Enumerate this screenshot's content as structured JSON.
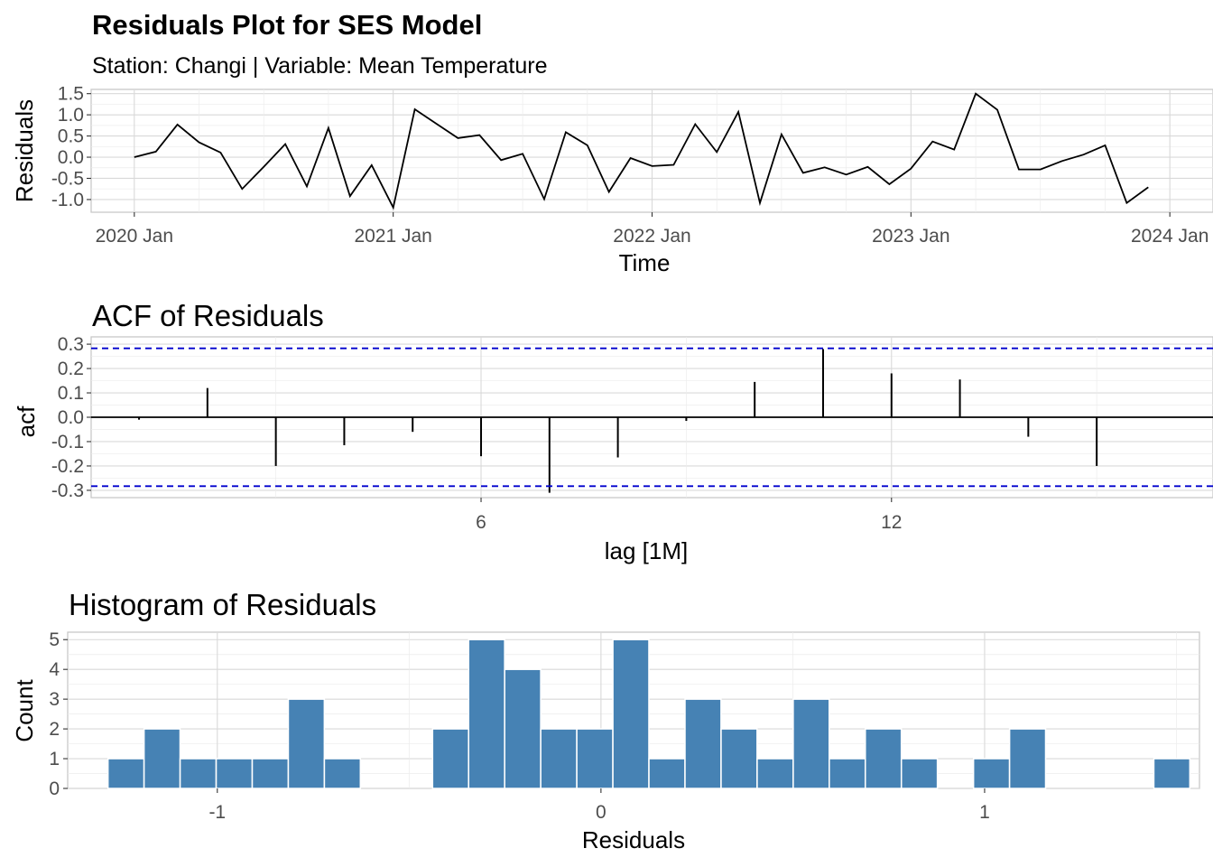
{
  "title": "Residuals Plot for SES Model",
  "subtitle": "Station: Changi | Variable: Mean Temperature",
  "chart_data": [
    {
      "type": "line",
      "xlabel": "Time",
      "ylabel": "Residuals",
      "x_tick_labels": [
        "2020 Jan",
        "2021 Jan",
        "2022 Jan",
        "2023 Jan",
        "2024 Jan"
      ],
      "y_tick_labels": [
        "-1.0",
        "-0.5",
        "0.0",
        "0.5",
        "1.0",
        "1.5"
      ],
      "y_ticks": [
        -1.0,
        -0.5,
        0.0,
        0.5,
        1.0,
        1.5
      ],
      "xlim": [
        "2019-11",
        "2024-03"
      ],
      "ylim": [
        -1.3,
        1.6
      ],
      "grid": true,
      "x": [
        "2020-01",
        "2020-02",
        "2020-03",
        "2020-04",
        "2020-05",
        "2020-06",
        "2020-07",
        "2020-08",
        "2020-09",
        "2020-10",
        "2020-11",
        "2020-12",
        "2021-01",
        "2021-02",
        "2021-03",
        "2021-04",
        "2021-05",
        "2021-06",
        "2021-07",
        "2021-08",
        "2021-09",
        "2021-10",
        "2021-11",
        "2021-12",
        "2022-01",
        "2022-02",
        "2022-03",
        "2022-04",
        "2022-05",
        "2022-06",
        "2022-07",
        "2022-08",
        "2022-09",
        "2022-10",
        "2022-11",
        "2022-12",
        "2023-01",
        "2023-02",
        "2023-03",
        "2023-04",
        "2023-05",
        "2023-06",
        "2023-07",
        "2023-08",
        "2023-09",
        "2023-10",
        "2023-11",
        "2023-12"
      ],
      "y": [
        0.0,
        0.13,
        0.77,
        0.35,
        0.11,
        -0.75,
        -0.23,
        0.31,
        -0.69,
        0.69,
        -0.92,
        -0.19,
        -1.19,
        1.13,
        0.79,
        0.45,
        0.52,
        -0.07,
        0.08,
        -0.99,
        0.59,
        0.28,
        -0.82,
        -0.02,
        -0.21,
        -0.18,
        0.78,
        0.12,
        1.07,
        -1.08,
        0.54,
        -0.37,
        -0.24,
        -0.41,
        -0.23,
        -0.64,
        -0.27,
        0.37,
        0.18,
        1.5,
        1.12,
        -0.29,
        -0.29,
        -0.09,
        0.06,
        0.28,
        -1.08,
        -0.71
      ],
      "color": "#000000"
    },
    {
      "type": "bar",
      "title": "ACF of Residuals",
      "xlabel": "lag [1M]",
      "ylabel": "acf",
      "x_tick_labels": [
        "6",
        "12"
      ],
      "y_tick_labels": [
        "-0.3",
        "-0.2",
        "-0.1",
        "0.0",
        "0.1",
        "0.2",
        "0.3"
      ],
      "y_ticks": [
        -0.3,
        -0.2,
        -0.1,
        0.0,
        0.1,
        0.2,
        0.3
      ],
      "xlim": [
        0.3,
        16.7
      ],
      "ylim": [
        -0.33,
        0.33
      ],
      "grid": true,
      "x": [
        1,
        2,
        3,
        4,
        5,
        6,
        7,
        8,
        9,
        10,
        11,
        12,
        13,
        14,
        15,
        16
      ],
      "values": [
        -0.01,
        0.12,
        -0.2,
        -0.115,
        -0.06,
        -0.16,
        -0.31,
        -0.165,
        -0.015,
        0.145,
        0.28,
        0.18,
        0.155,
        -0.08,
        -0.2,
        0.0
      ],
      "confidence_bound": 0.283,
      "bound_color": "#0000cd",
      "bar_color": "#000000"
    },
    {
      "type": "bar",
      "title": "Histogram of Residuals",
      "xlabel": "Residuals",
      "ylabel": "Count",
      "x_tick_labels": [
        "-1",
        "0",
        "1"
      ],
      "x_ticks": [
        -1,
        0,
        1
      ],
      "y_tick_labels": [
        "0",
        "1",
        "2",
        "3",
        "4",
        "5"
      ],
      "y_ticks": [
        0,
        1,
        2,
        3,
        4,
        5
      ],
      "xlim": [
        -1.39,
        1.56
      ],
      "ylim": [
        0,
        5.25
      ],
      "grid": true,
      "bin_width": 0.0938,
      "bin_centers": [
        -1.238,
        -1.144,
        -1.05,
        -0.956,
        -0.862,
        -0.768,
        -0.674,
        -0.58,
        -0.486,
        -0.392,
        -0.298,
        -0.204,
        -0.11,
        -0.016,
        0.078,
        0.172,
        0.266,
        0.36,
        0.454,
        0.548,
        0.642,
        0.736,
        0.83,
        0.924,
        1.018,
        1.112,
        1.206,
        1.3,
        1.394,
        1.488
      ],
      "values": [
        1,
        2,
        1,
        1,
        1,
        3,
        1,
        0,
        0,
        2,
        5,
        4,
        2,
        2,
        5,
        1,
        3,
        2,
        1,
        3,
        1,
        2,
        1,
        0,
        1,
        2,
        0,
        0,
        0,
        1
      ],
      "bar_color": "#4682b4"
    }
  ]
}
